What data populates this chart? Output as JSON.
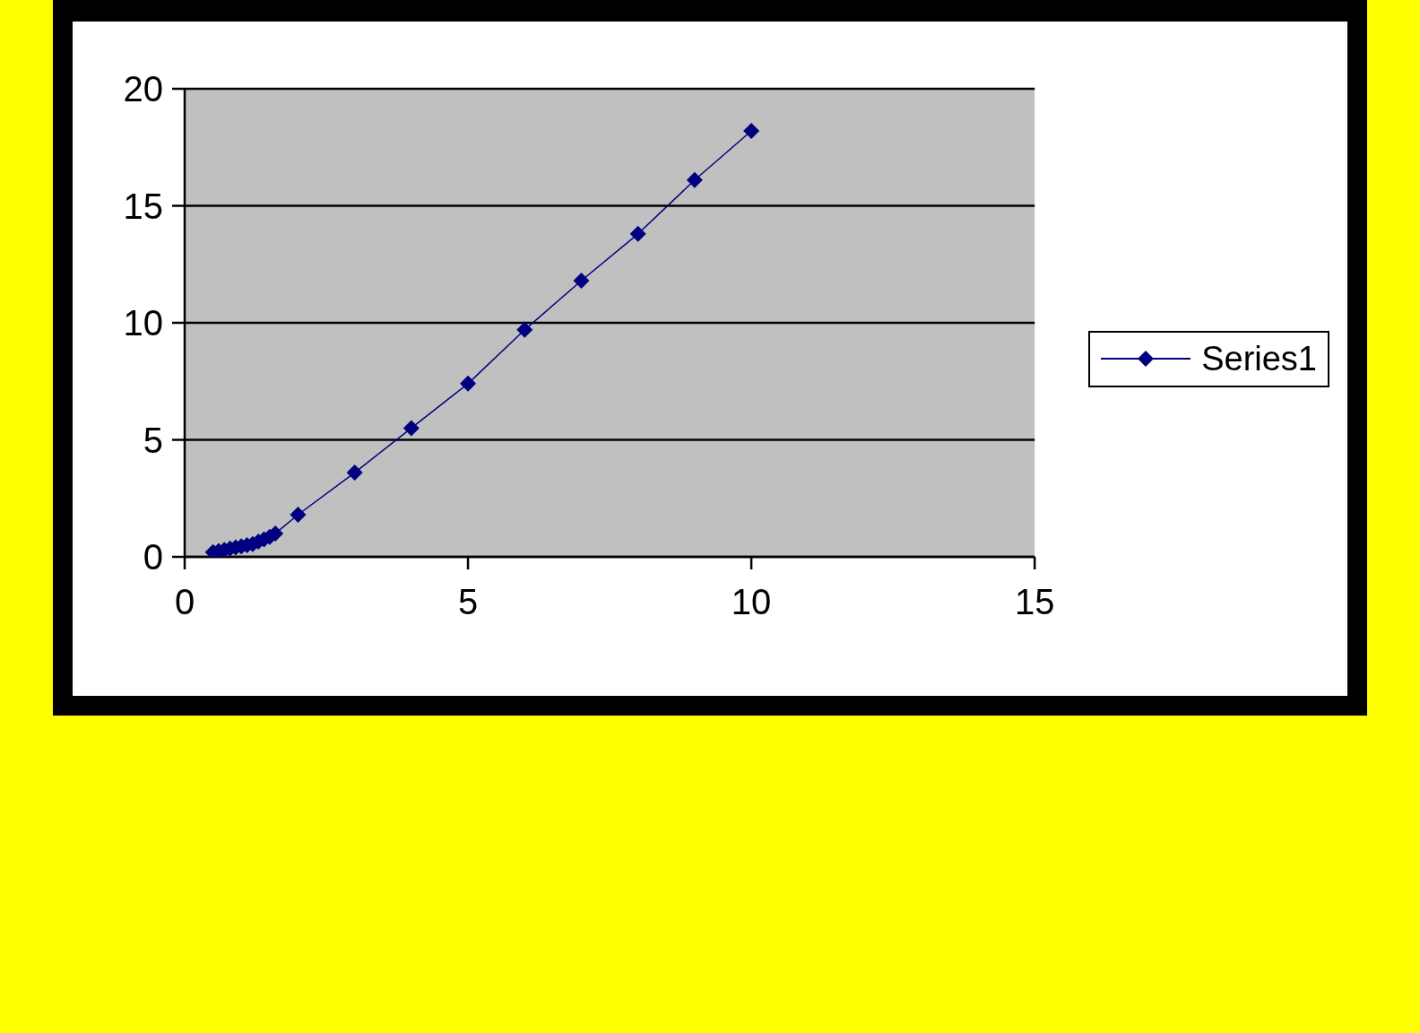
{
  "chart_data": {
    "type": "line",
    "x": [
      0.5,
      0.6,
      0.7,
      0.8,
      0.9,
      1.0,
      1.1,
      1.2,
      1.3,
      1.4,
      1.5,
      1.6,
      2,
      3,
      4,
      5,
      6,
      7,
      8,
      9,
      10
    ],
    "series": [
      {
        "name": "Series1",
        "color": "#000080",
        "values": [
          0.2,
          0.25,
          0.3,
          0.35,
          0.4,
          0.45,
          0.5,
          0.55,
          0.65,
          0.75,
          0.85,
          1.0,
          1.8,
          3.6,
          5.5,
          7.4,
          9.7,
          11.8,
          13.8,
          16.1,
          18.2
        ]
      }
    ],
    "xlim": [
      0,
      15
    ],
    "xticks": [
      0,
      5,
      10,
      15
    ],
    "ylim": [
      0,
      20
    ],
    "yticks": [
      0,
      5,
      10,
      15,
      20
    ],
    "grid": "y",
    "legend": "right",
    "marker": "diamond",
    "line_style": "solid"
  }
}
